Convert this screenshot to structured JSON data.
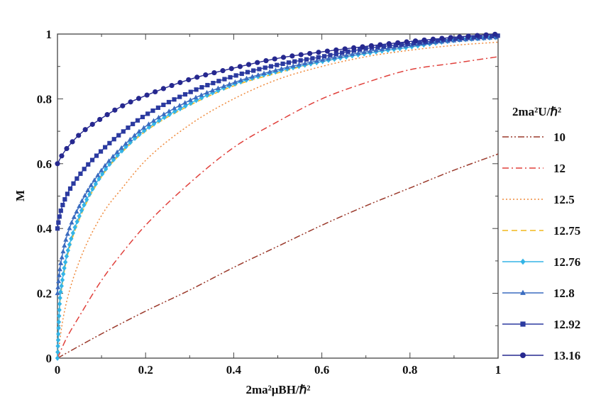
{
  "chart_data": {
    "type": "line",
    "title": "",
    "xlabel": "2ma²μBH/ℏ²",
    "ylabel": "M",
    "xlim": [
      0,
      1
    ],
    "ylim": [
      0,
      1
    ],
    "x_ticks": [
      "0",
      "0.2",
      "0.4",
      "0.6",
      "0.8",
      "1"
    ],
    "y_ticks": [
      "0",
      "0.2",
      "0.4",
      "0.6",
      "0.8",
      "1"
    ],
    "grid": false,
    "legend_title": "2ma²U/ℏ²",
    "legend_position": "right",
    "series": [
      {
        "name": "10",
        "color": "#9b3a2c",
        "dash": "dashdotdot",
        "marker": "none",
        "x": [
          0,
          0.1,
          0.2,
          0.3,
          0.4,
          0.5,
          0.6,
          0.7,
          0.8,
          0.9,
          1
        ],
        "y": [
          0,
          0.075,
          0.145,
          0.21,
          0.28,
          0.345,
          0.41,
          0.47,
          0.525,
          0.58,
          0.63
        ]
      },
      {
        "name": "12",
        "color": "#e0413c",
        "dash": "dashdot",
        "marker": "none",
        "x": [
          0,
          0.02,
          0.05,
          0.1,
          0.15,
          0.2,
          0.3,
          0.4,
          0.5,
          0.6,
          0.7,
          0.8,
          0.9,
          1
        ],
        "y": [
          0,
          0.06,
          0.13,
          0.24,
          0.33,
          0.41,
          0.54,
          0.65,
          0.73,
          0.8,
          0.85,
          0.89,
          0.91,
          0.93
        ]
      },
      {
        "name": "12.5",
        "color": "#ef8a3c",
        "dash": "dotted",
        "marker": "none",
        "x": [
          0,
          0.01,
          0.02,
          0.05,
          0.1,
          0.15,
          0.2,
          0.3,
          0.4,
          0.5,
          0.6,
          0.7,
          0.8,
          0.9,
          1
        ],
        "y": [
          0,
          0.1,
          0.17,
          0.3,
          0.44,
          0.53,
          0.61,
          0.72,
          0.8,
          0.86,
          0.9,
          0.93,
          0.95,
          0.965,
          0.975
        ]
      },
      {
        "name": "12.75",
        "color": "#f2b81c",
        "dash": "dashed",
        "marker": "none",
        "x": [
          0,
          0.005,
          0.01,
          0.02,
          0.05,
          0.1,
          0.15,
          0.2,
          0.3,
          0.4,
          0.5,
          0.6,
          0.7,
          0.8,
          0.9,
          1
        ],
        "y": [
          0,
          0.16,
          0.22,
          0.3,
          0.43,
          0.56,
          0.64,
          0.7,
          0.78,
          0.84,
          0.88,
          0.915,
          0.94,
          0.96,
          0.98,
          0.99
        ]
      },
      {
        "name": "12.76",
        "color": "#33b4e6",
        "dash": "solid",
        "marker": "diamond",
        "x": [
          0,
          0.005,
          0.01,
          0.02,
          0.05,
          0.1,
          0.15,
          0.2,
          0.3,
          0.4,
          0.5,
          0.6,
          0.7,
          0.8,
          0.9,
          1
        ],
        "y": [
          0,
          0.17,
          0.23,
          0.31,
          0.44,
          0.565,
          0.645,
          0.705,
          0.785,
          0.845,
          0.885,
          0.915,
          0.94,
          0.96,
          0.98,
          0.99
        ]
      },
      {
        "name": "12.8",
        "color": "#3a6cc0",
        "dash": "solid",
        "marker": "triangle",
        "x": [
          0,
          0.005,
          0.01,
          0.02,
          0.05,
          0.1,
          0.15,
          0.2,
          0.3,
          0.4,
          0.5,
          0.6,
          0.7,
          0.8,
          0.9,
          1
        ],
        "y": [
          0.2,
          0.27,
          0.31,
          0.37,
          0.47,
          0.58,
          0.655,
          0.715,
          0.795,
          0.85,
          0.89,
          0.92,
          0.945,
          0.965,
          0.98,
          0.99
        ]
      },
      {
        "name": "12.92",
        "color": "#2b3aa0",
        "dash": "solid",
        "marker": "square",
        "x": [
          0,
          0.005,
          0.01,
          0.02,
          0.05,
          0.1,
          0.15,
          0.2,
          0.3,
          0.4,
          0.5,
          0.6,
          0.7,
          0.8,
          0.9,
          1
        ],
        "y": [
          0.4,
          0.44,
          0.465,
          0.5,
          0.565,
          0.64,
          0.7,
          0.75,
          0.82,
          0.87,
          0.905,
          0.93,
          0.955,
          0.97,
          0.985,
          0.995
        ]
      },
      {
        "name": "13.16",
        "color": "#26288f",
        "dash": "solid",
        "marker": "circle",
        "x": [
          0,
          0.01,
          0.02,
          0.05,
          0.1,
          0.15,
          0.2,
          0.3,
          0.4,
          0.5,
          0.6,
          0.7,
          0.8,
          0.9,
          1
        ],
        "y": [
          0.6,
          0.625,
          0.645,
          0.69,
          0.74,
          0.78,
          0.81,
          0.86,
          0.895,
          0.925,
          0.945,
          0.962,
          0.977,
          0.99,
          1.0
        ]
      }
    ]
  }
}
